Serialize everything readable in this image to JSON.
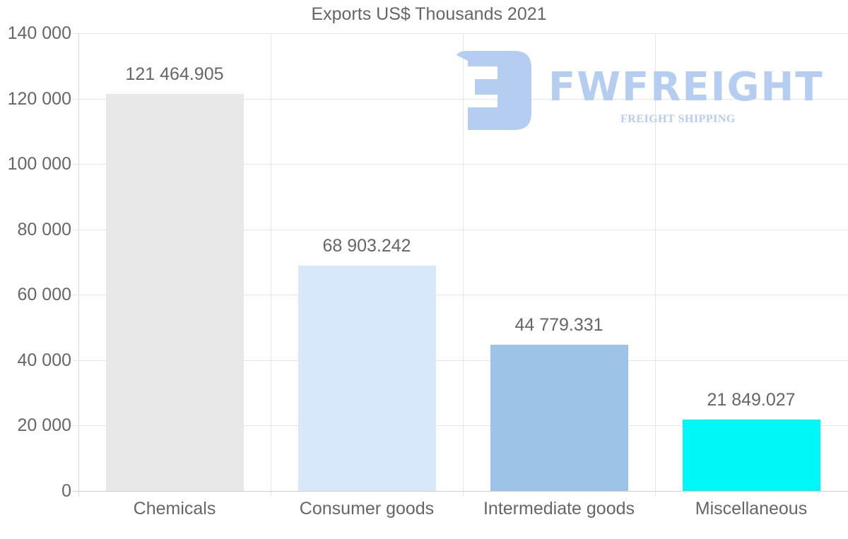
{
  "chart_data": {
    "type": "bar",
    "title": "Exports US$ Thousands 2021",
    "xlabel": "",
    "ylabel": "",
    "categories": [
      "Chemicals",
      "Consumer goods",
      "Intermediate goods",
      "Miscellaneous"
    ],
    "values": [
      121464.905,
      68903.242,
      44779.331,
      21849.027
    ],
    "value_labels": [
      "121 464.905",
      "68 903.242",
      "44 779.331",
      "21 849.027"
    ],
    "colors": [
      "#e8e8e8",
      "#d6e8f9",
      "#9dc3e6",
      "#00f7f7"
    ],
    "ylim": [
      0,
      140000
    ],
    "yticks": [
      0,
      20000,
      40000,
      60000,
      80000,
      100000,
      120000,
      140000
    ],
    "ytick_labels": [
      "0",
      "20 000",
      "40 000",
      "60 000",
      "80 000",
      "100 000",
      "120 000",
      "140 000"
    ],
    "grid": true,
    "legend": null
  },
  "watermark": {
    "brand": "FWFREIGHT",
    "tagline": "FREIGHT SHIPPING",
    "color": "#b3cbf2"
  }
}
